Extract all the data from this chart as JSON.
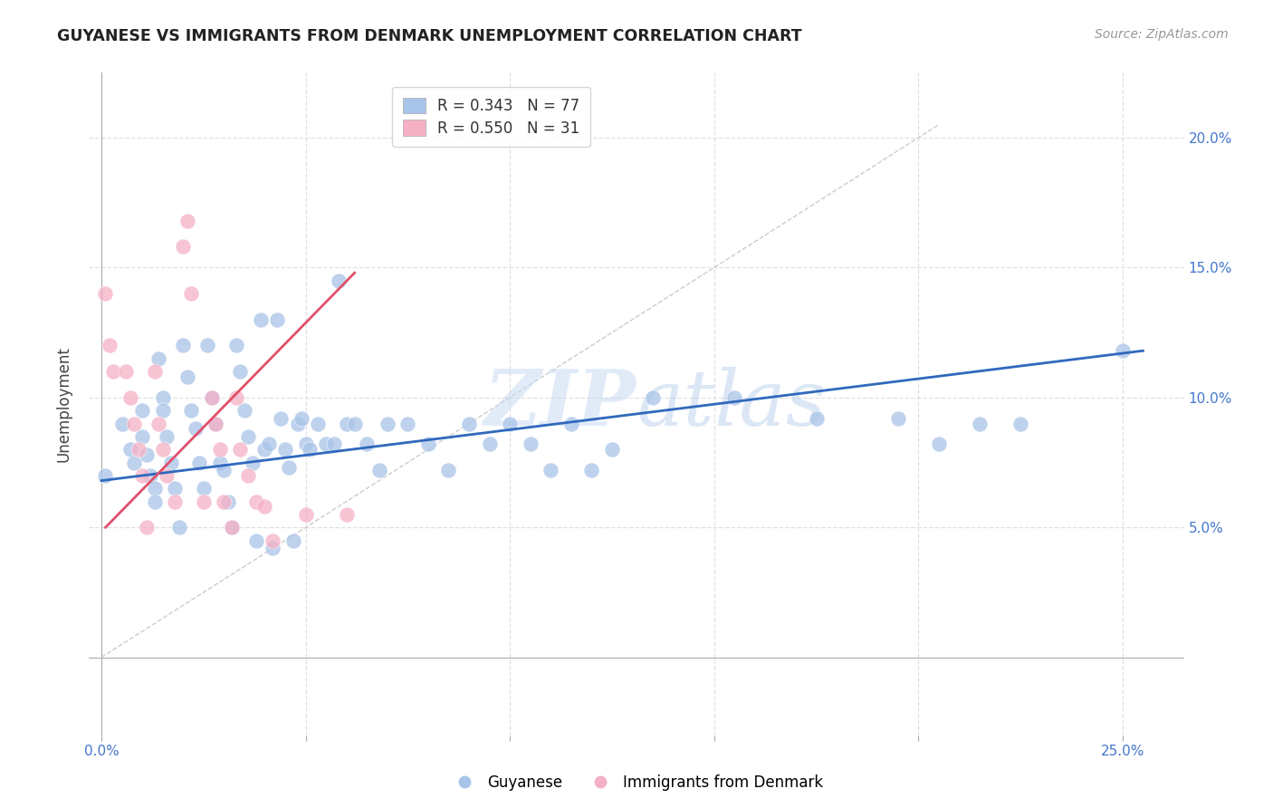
{
  "title": "GUYANESE VS IMMIGRANTS FROM DENMARK UNEMPLOYMENT CORRELATION CHART",
  "source": "Source: ZipAtlas.com",
  "ylabel": "Unemployment",
  "xlim": [
    -0.003,
    0.265
  ],
  "ylim": [
    -0.03,
    0.225
  ],
  "ytick_positions": [
    0.05,
    0.1,
    0.15,
    0.2
  ],
  "ytick_labels": [
    "5.0%",
    "10.0%",
    "15.0%",
    "20.0%"
  ],
  "xtick_positions": [
    0.0,
    0.05,
    0.1,
    0.15,
    0.2,
    0.25
  ],
  "xtick_labels_show": [
    "0.0%",
    "",
    "",
    "",
    "",
    "25.0%"
  ],
  "blue_color": "#a8c4e8",
  "pink_color": "#f5b0c5",
  "blue_line_color": "#3068be",
  "pink_line_color": "#e0506a",
  "diagonal_color": "#cccccc",
  "legend_r1": "R = 0.343",
  "legend_n1": "N = 77",
  "legend_r2": "R = 0.550",
  "legend_n2": "N = 31",
  "watermark_zip": "ZIP",
  "watermark_atlas": "atlas",
  "background_color": "#ffffff",
  "grid_color": "#e0e0e0",
  "guyanese_x": [
    0.001,
    0.005,
    0.007,
    0.008,
    0.01,
    0.01,
    0.011,
    0.012,
    0.013,
    0.013,
    0.014,
    0.015,
    0.015,
    0.016,
    0.017,
    0.018,
    0.019,
    0.02,
    0.021,
    0.022,
    0.023,
    0.024,
    0.025,
    0.026,
    0.027,
    0.028,
    0.029,
    0.03,
    0.031,
    0.032,
    0.033,
    0.034,
    0.035,
    0.036,
    0.037,
    0.038,
    0.039,
    0.04,
    0.041,
    0.042,
    0.043,
    0.044,
    0.045,
    0.046,
    0.047,
    0.048,
    0.049,
    0.05,
    0.051,
    0.053,
    0.055,
    0.057,
    0.058,
    0.06,
    0.062,
    0.065,
    0.068,
    0.07,
    0.075,
    0.08,
    0.085,
    0.09,
    0.095,
    0.1,
    0.105,
    0.11,
    0.115,
    0.12,
    0.125,
    0.135,
    0.155,
    0.175,
    0.195,
    0.205,
    0.215,
    0.225,
    0.25
  ],
  "guyanese_y": [
    0.07,
    0.09,
    0.08,
    0.075,
    0.095,
    0.085,
    0.078,
    0.07,
    0.065,
    0.06,
    0.115,
    0.1,
    0.095,
    0.085,
    0.075,
    0.065,
    0.05,
    0.12,
    0.108,
    0.095,
    0.088,
    0.075,
    0.065,
    0.12,
    0.1,
    0.09,
    0.075,
    0.072,
    0.06,
    0.05,
    0.12,
    0.11,
    0.095,
    0.085,
    0.075,
    0.045,
    0.13,
    0.08,
    0.082,
    0.042,
    0.13,
    0.092,
    0.08,
    0.073,
    0.045,
    0.09,
    0.092,
    0.082,
    0.08,
    0.09,
    0.082,
    0.082,
    0.145,
    0.09,
    0.09,
    0.082,
    0.072,
    0.09,
    0.09,
    0.082,
    0.072,
    0.09,
    0.082,
    0.09,
    0.082,
    0.072,
    0.09,
    0.072,
    0.08,
    0.1,
    0.1,
    0.092,
    0.092,
    0.082,
    0.09,
    0.09,
    0.118
  ],
  "denmark_x": [
    0.001,
    0.002,
    0.003,
    0.006,
    0.007,
    0.008,
    0.009,
    0.01,
    0.011,
    0.013,
    0.014,
    0.015,
    0.016,
    0.018,
    0.02,
    0.021,
    0.022,
    0.025,
    0.027,
    0.028,
    0.029,
    0.03,
    0.032,
    0.033,
    0.034,
    0.036,
    0.038,
    0.04,
    0.042,
    0.05,
    0.06
  ],
  "denmark_y": [
    0.14,
    0.12,
    0.11,
    0.11,
    0.1,
    0.09,
    0.08,
    0.07,
    0.05,
    0.11,
    0.09,
    0.08,
    0.07,
    0.06,
    0.158,
    0.168,
    0.14,
    0.06,
    0.1,
    0.09,
    0.08,
    0.06,
    0.05,
    0.1,
    0.08,
    0.07,
    0.06,
    0.058,
    0.045,
    0.055,
    0.055
  ],
  "blue_line_x": [
    0.0,
    0.255
  ],
  "blue_line_y": [
    0.068,
    0.118
  ],
  "pink_line_x": [
    0.001,
    0.062
  ],
  "pink_line_y": [
    0.05,
    0.148
  ],
  "diag_line_x": [
    0.0,
    0.205
  ],
  "diag_line_y": [
    0.0,
    0.205
  ]
}
